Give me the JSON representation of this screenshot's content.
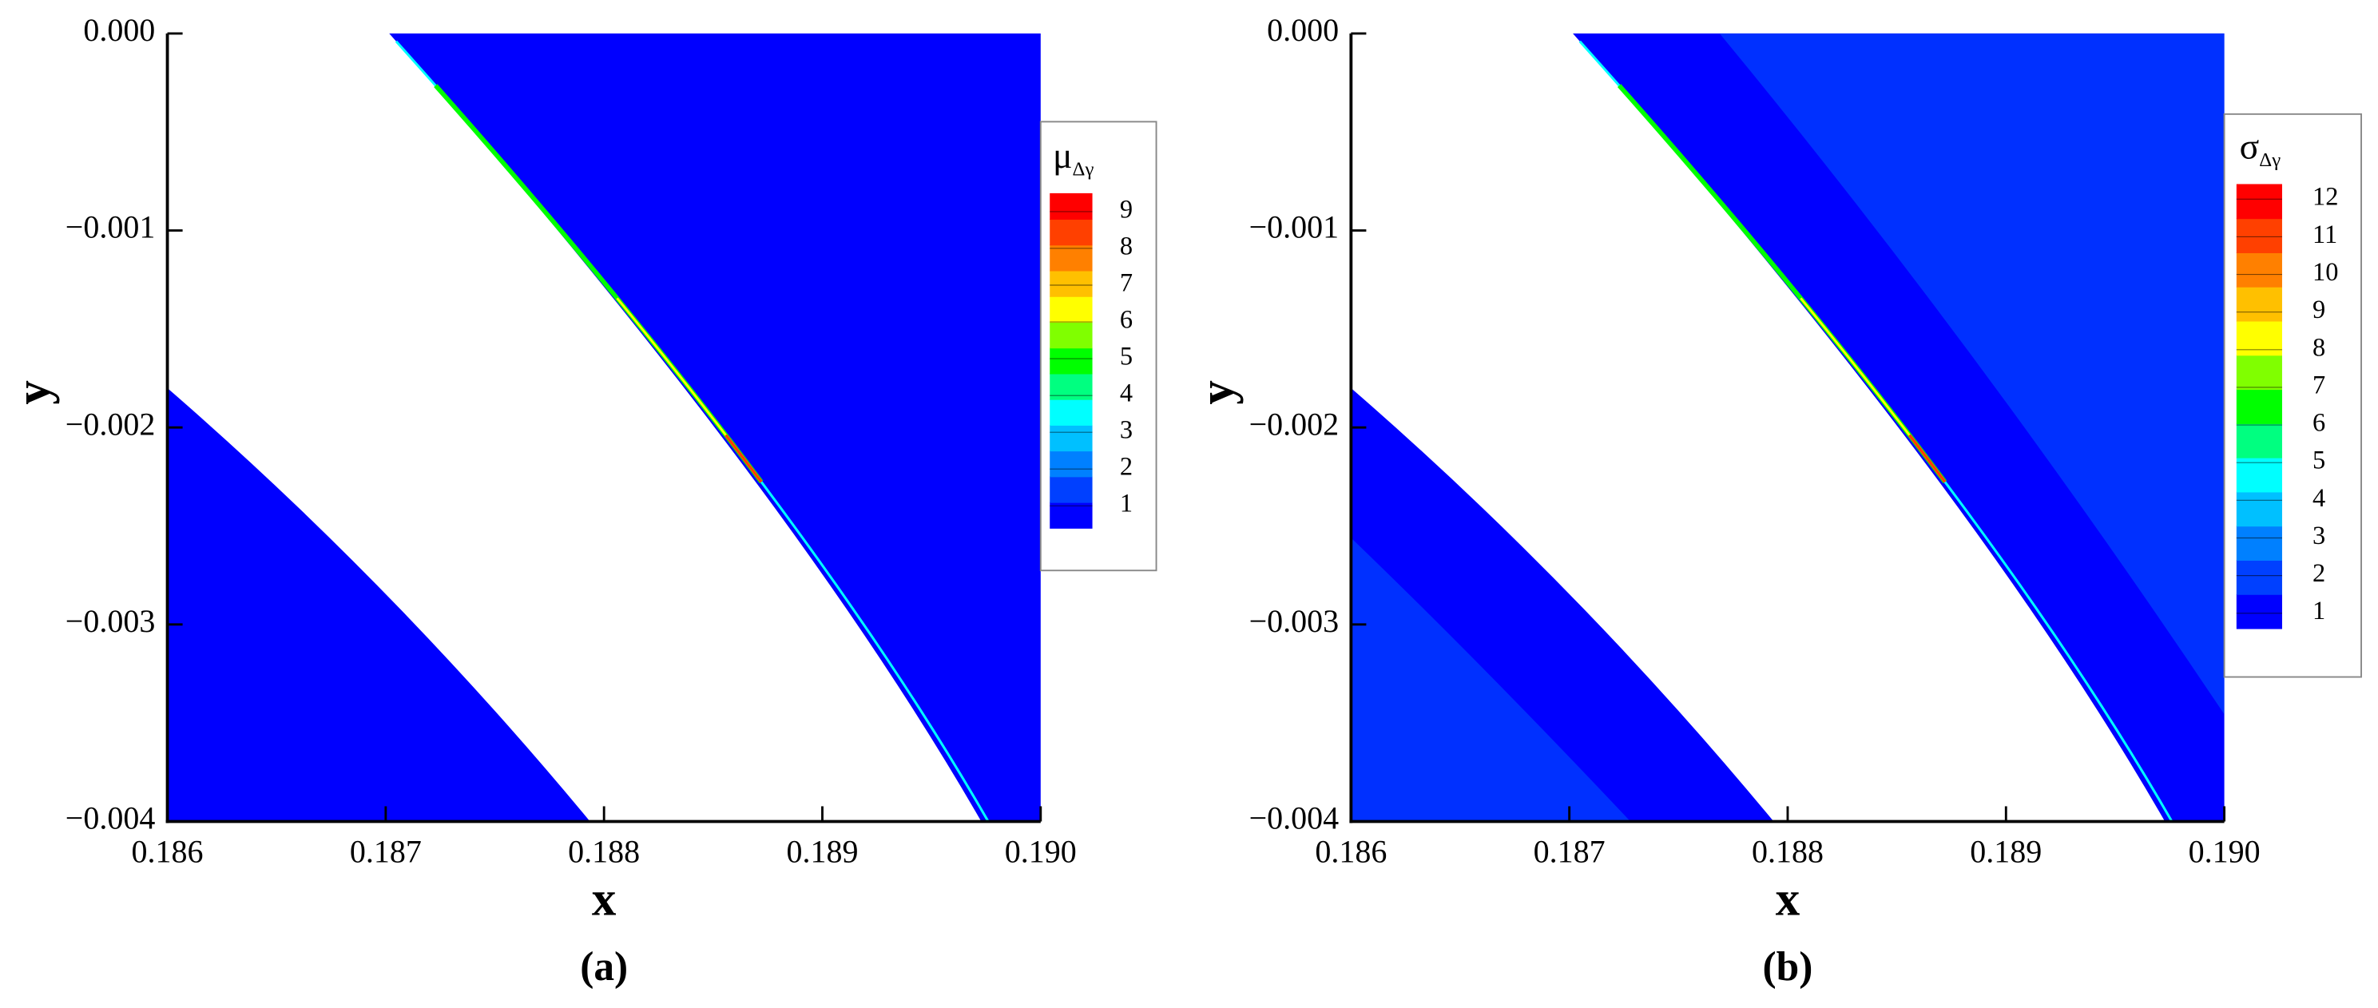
{
  "chart_data": [
    {
      "type": "contour",
      "caption": "(a)",
      "xlabel": "x",
      "ylabel": "y",
      "xlim": [
        0.186,
        0.19
      ],
      "ylim": [
        -0.004,
        0
      ],
      "xticks": [
        0.186,
        0.187,
        0.188,
        0.189,
        {
          "value": 0.19,
          "label": "0.190"
        }
      ],
      "yticks": [
        {
          "value": 0,
          "label": "0.000"
        },
        {
          "value": -0.001,
          "label": "−0.001"
        },
        {
          "value": -0.002,
          "label": "−0.002"
        },
        {
          "value": -0.003,
          "label": "−0.003"
        },
        {
          "value": -0.004,
          "label": "−0.004"
        }
      ],
      "colorbar": {
        "title": "μ",
        "subscript": "Δγ",
        "clim": [
          0.4,
          9.5
        ],
        "ticks": [
          1,
          2,
          3,
          4,
          5,
          6,
          7,
          8,
          9
        ]
      },
      "colormap": [
        "#0000ff",
        "#0040ff",
        "#0080ff",
        "#00c0ff",
        "#00ffff",
        "#00ff80",
        "#00ff00",
        "#80ff00",
        "#ffff00",
        "#ffc000",
        "#ff8000",
        "#ff4000",
        "#ff0000"
      ]
    },
    {
      "type": "contour",
      "caption": "(b)",
      "xlabel": "x",
      "ylabel": "y",
      "xlim": [
        0.186,
        0.19
      ],
      "ylim": [
        -0.004,
        0
      ],
      "xticks": [
        0.186,
        0.187,
        0.188,
        0.189,
        {
          "value": 0.19,
          "label": "0.190"
        }
      ],
      "yticks": [
        {
          "value": 0,
          "label": "0.000"
        },
        {
          "value": -0.001,
          "label": "−0.001"
        },
        {
          "value": -0.002,
          "label": "−0.002"
        },
        {
          "value": -0.003,
          "label": "−0.003"
        },
        {
          "value": -0.004,
          "label": "−0.004"
        }
      ],
      "colorbar": {
        "title": "σ",
        "subscript": "Δγ",
        "clim": [
          0.6,
          12.4
        ],
        "ticks": [
          1,
          2,
          3,
          4,
          5,
          6,
          7,
          8,
          9,
          10,
          11,
          12
        ]
      },
      "colormap": [
        "#0000ff",
        "#0040ff",
        "#0080ff",
        "#00c0ff",
        "#00ffff",
        "#00ff80",
        "#00ff00",
        "#80ff00",
        "#ffff00",
        "#ffc000",
        "#ff8000",
        "#ff4000",
        "#ff0000"
      ]
    }
  ]
}
